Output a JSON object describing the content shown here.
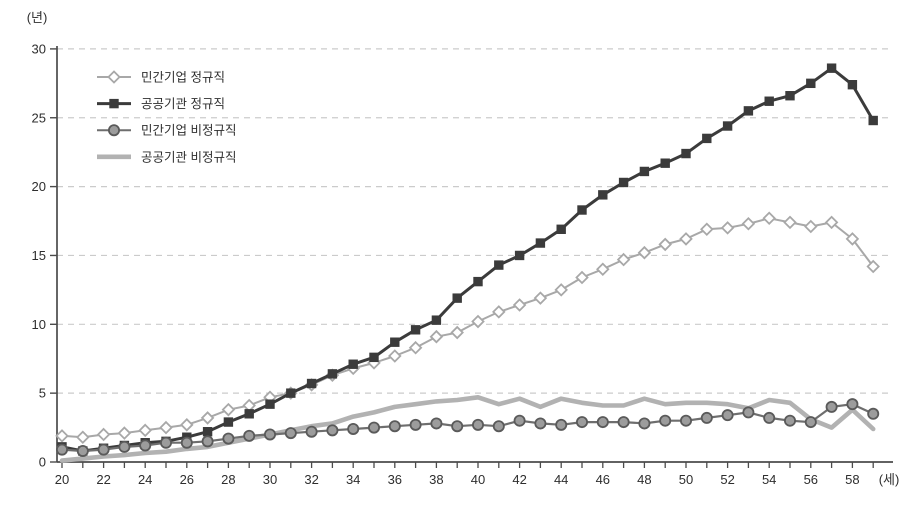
{
  "figure": {
    "background": "#ffffff",
    "axis_color": "#4b4b4b",
    "grid_color": "#cbcbcb",
    "text_color": "#2e2e2e",
    "y_unit_label": "(년)",
    "x_unit_label": "(세)"
  },
  "chart_data": {
    "type": "line",
    "title": "",
    "y_label": "(년)",
    "x_label": "(세)",
    "ylim": [
      0,
      30
    ],
    "y_ticks": [
      0,
      5,
      10,
      15,
      20,
      25,
      30
    ],
    "x": [
      20,
      21,
      22,
      23,
      24,
      25,
      26,
      27,
      28,
      29,
      30,
      31,
      32,
      33,
      34,
      35,
      36,
      37,
      38,
      39,
      40,
      41,
      42,
      43,
      44,
      45,
      46,
      47,
      48,
      49,
      50,
      51,
      52,
      53,
      54,
      55,
      56,
      57,
      58,
      59
    ],
    "x_tick_label_step": 2,
    "grid": "horizontal-dashed",
    "legend_position": "top-left-inside",
    "series": [
      {
        "name": "민간기업 정규직",
        "marker": "open-diamond",
        "line_color": "#a8a8a8",
        "marker_fill": "#ffffff",
        "line_width": 2,
        "values": [
          1.9,
          1.8,
          2.0,
          2.1,
          2.3,
          2.5,
          2.7,
          3.2,
          3.8,
          4.1,
          4.7,
          5.0,
          5.6,
          6.3,
          6.8,
          7.2,
          7.7,
          8.3,
          9.1,
          9.4,
          10.2,
          10.9,
          11.4,
          11.9,
          12.5,
          13.4,
          14.0,
          14.7,
          15.2,
          15.8,
          16.2,
          16.9,
          17.0,
          17.3,
          17.7,
          17.4,
          17.1,
          17.4,
          16.2,
          14.2
        ]
      },
      {
        "name": "공공기관 정규직",
        "marker": "filled-square",
        "line_color": "#3b3b3b",
        "marker_fill": "#3b3b3b",
        "line_width": 3,
        "values": [
          1.1,
          0.8,
          1.0,
          1.2,
          1.4,
          1.5,
          1.8,
          2.2,
          2.9,
          3.5,
          4.2,
          5.0,
          5.7,
          6.4,
          7.1,
          7.6,
          8.7,
          9.6,
          10.3,
          11.9,
          13.1,
          14.3,
          15.0,
          15.9,
          16.9,
          18.3,
          19.4,
          20.3,
          21.1,
          21.7,
          22.4,
          23.5,
          24.4,
          25.5,
          26.2,
          26.6,
          27.5,
          28.6,
          27.4,
          24.8
        ]
      },
      {
        "name": "민간기업 비정규직",
        "marker": "filled-circle",
        "line_color": "#6e6e6e",
        "marker_fill": "#9c9c9c",
        "marker_stroke": "#5a5a5a",
        "line_width": 2.2,
        "values": [
          0.9,
          0.8,
          0.9,
          1.1,
          1.2,
          1.4,
          1.4,
          1.5,
          1.7,
          1.9,
          2.0,
          2.1,
          2.2,
          2.3,
          2.4,
          2.5,
          2.6,
          2.7,
          2.8,
          2.6,
          2.7,
          2.6,
          3.0,
          2.8,
          2.7,
          2.9,
          2.9,
          2.9,
          2.8,
          3.0,
          3.0,
          3.2,
          3.4,
          3.6,
          3.2,
          3.0,
          2.9,
          4.0,
          4.2,
          3.5
        ]
      },
      {
        "name": "공공기관 비정규직",
        "marker": "none",
        "line_color": "#b2b2b2",
        "marker_fill": "#b2b2b2",
        "line_width": 4.6,
        "values": [
          0.1,
          0.25,
          0.4,
          0.5,
          0.65,
          0.75,
          0.95,
          1.1,
          1.4,
          1.7,
          2.0,
          2.3,
          2.6,
          2.8,
          3.3,
          3.6,
          4.0,
          4.2,
          4.4,
          4.5,
          4.7,
          4.2,
          4.6,
          4.0,
          4.6,
          4.3,
          4.1,
          4.1,
          4.6,
          4.2,
          4.3,
          4.3,
          4.2,
          3.9,
          4.5,
          4.3,
          3.1,
          2.5,
          3.8,
          2.4
        ]
      }
    ]
  }
}
